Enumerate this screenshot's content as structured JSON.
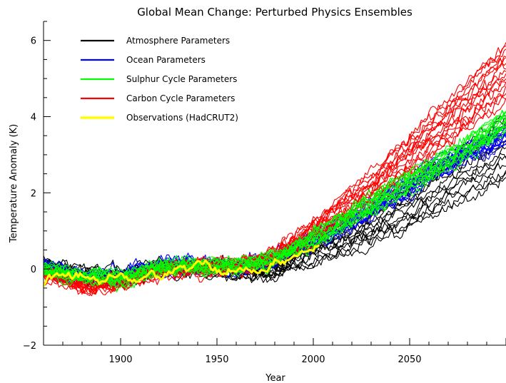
{
  "chart_data": {
    "type": "line",
    "title": "Global Mean Change: Perturbed Physics Ensembles",
    "xlabel": "Year",
    "ylabel": "Temperature Anomaly (K)",
    "xlim": [
      1860,
      2100
    ],
    "ylim": [
      -2,
      6.5
    ],
    "x_ticks": [
      1900,
      1950,
      2000,
      2050
    ],
    "y_ticks": [
      -2,
      0,
      2,
      4,
      6
    ],
    "grid": false,
    "legend_position": "top-left",
    "series": [
      {
        "name": "Atmosphere Parameters",
        "color": "#000000",
        "ensemble_size": 14,
        "x": [
          1860,
          1880,
          1900,
          1920,
          1940,
          1960,
          1980,
          2000,
          2020,
          2040,
          2060,
          2080,
          2100
        ],
        "mean": [
          0.1,
          -0.15,
          -0.2,
          0.0,
          0.05,
          -0.05,
          -0.05,
          0.5,
          0.85,
          1.35,
          1.95,
          2.6,
          3.2
        ],
        "spread_start": 0.25,
        "spread_end": 0.85
      },
      {
        "name": "Ocean Parameters",
        "color": "#0000ff",
        "ensemble_size": 14,
        "x": [
          1860,
          1880,
          1900,
          1920,
          1940,
          1960,
          1980,
          2000,
          2020,
          2040,
          2060,
          2080,
          2100
        ],
        "mean": [
          0.05,
          -0.2,
          -0.2,
          0.05,
          0.1,
          0.05,
          0.25,
          0.75,
          1.3,
          1.9,
          2.5,
          3.05,
          3.5
        ],
        "spread_start": 0.2,
        "spread_end": 0.2
      },
      {
        "name": "Sulphur Cycle Parameters",
        "color": "#00ff00",
        "ensemble_size": 14,
        "x": [
          1860,
          1880,
          1900,
          1920,
          1940,
          1960,
          1980,
          2000,
          2020,
          2040,
          2060,
          2080,
          2100
        ],
        "mean": [
          0.0,
          -0.2,
          -0.25,
          0.05,
          0.1,
          0.05,
          0.3,
          0.8,
          1.4,
          2.0,
          2.6,
          3.2,
          3.9
        ],
        "spread_start": 0.2,
        "spread_end": 0.25
      },
      {
        "name": "Carbon Cycle Parameters",
        "color": "#ff0000",
        "ensemble_size": 16,
        "x": [
          1860,
          1880,
          1900,
          1920,
          1940,
          1960,
          1980,
          2000,
          2020,
          2040,
          2060,
          2080,
          2100
        ],
        "mean": [
          -0.1,
          -0.45,
          -0.35,
          -0.05,
          0.05,
          0.05,
          0.35,
          1.0,
          1.75,
          2.55,
          3.45,
          4.3,
          5.2
        ],
        "spread_start": 0.2,
        "spread_end": 0.75
      },
      {
        "name": "Observations (HadCRUT2)",
        "color": "#ffff00",
        "ensemble_size": 1,
        "x": [
          1860,
          1865,
          1870,
          1875,
          1880,
          1885,
          1890,
          1895,
          1900,
          1905,
          1910,
          1915,
          1920,
          1925,
          1930,
          1935,
          1940,
          1945,
          1950,
          1955,
          1960,
          1965,
          1970,
          1975,
          1980,
          1985,
          1990,
          1995,
          2000,
          2003
        ],
        "y": [
          -0.35,
          -0.2,
          -0.15,
          -0.2,
          -0.15,
          -0.3,
          -0.35,
          -0.25,
          -0.15,
          -0.3,
          -0.35,
          -0.15,
          -0.2,
          -0.1,
          0.05,
          0.0,
          0.2,
          0.15,
          -0.05,
          -0.1,
          0.0,
          0.0,
          -0.05,
          -0.05,
          0.2,
          0.15,
          0.35,
          0.4,
          0.55,
          0.6
        ]
      }
    ]
  }
}
